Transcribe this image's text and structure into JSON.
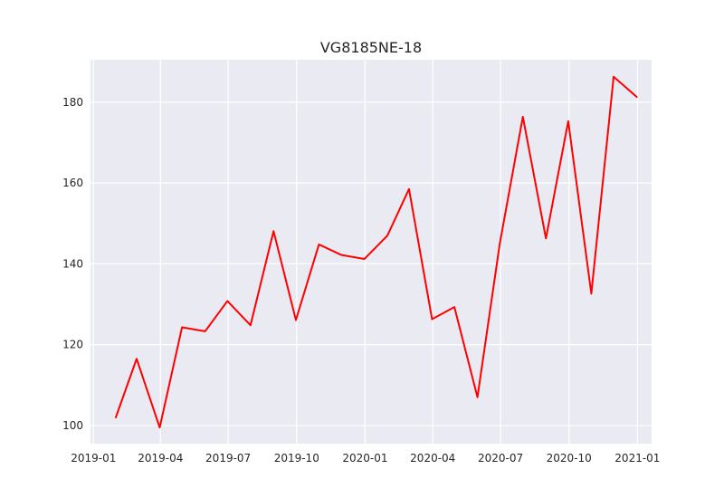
{
  "chart_data": {
    "type": "line",
    "title": "VG8185NE-18",
    "xlabel": "",
    "ylabel": "",
    "grid": true,
    "xlim": [
      "2018-12-28",
      "2021-01-20"
    ],
    "ylim": [
      95.5,
      190.5
    ],
    "x_ticks": [
      "2019-01",
      "2019-04",
      "2019-07",
      "2019-10",
      "2020-01",
      "2020-04",
      "2020-07",
      "2020-10",
      "2021-01"
    ],
    "y_ticks": [
      100,
      120,
      140,
      160,
      180
    ],
    "series": [
      {
        "color": "#ff0000",
        "x": [
          "2019-01-31",
          "2019-02-28",
          "2019-03-31",
          "2019-04-30",
          "2019-05-31",
          "2019-06-30",
          "2019-07-31",
          "2019-08-31",
          "2019-09-30",
          "2019-10-31",
          "2019-11-30",
          "2019-12-31",
          "2020-01-31",
          "2020-02-29",
          "2020-03-31",
          "2020-04-30",
          "2020-05-31",
          "2020-06-30",
          "2020-07-31",
          "2020-08-31",
          "2020-09-30",
          "2020-10-31",
          "2020-11-30",
          "2020-12-31"
        ],
        "y": [
          102,
          116.5,
          99.5,
          124.3,
          123.3,
          130.8,
          124.8,
          148.1,
          126.1,
          144.8,
          142.2,
          141.2,
          147.0,
          158.5,
          126.3,
          129.3,
          107.0,
          145.0,
          176.4,
          146.3,
          175.3,
          132.6,
          186.3,
          181.3
        ]
      }
    ]
  }
}
